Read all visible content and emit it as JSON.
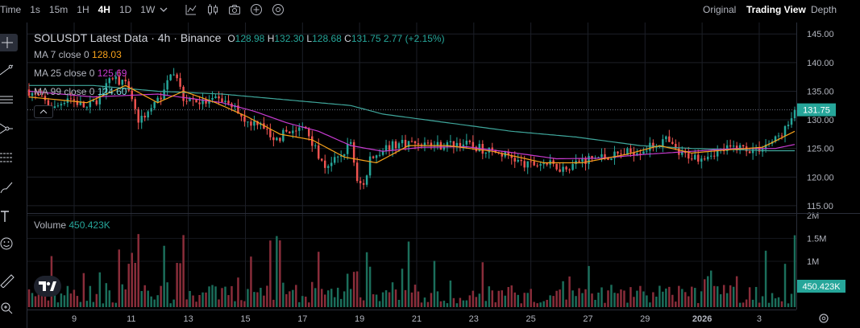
{
  "toolbar": {
    "timeframes": [
      "Time",
      "1s",
      "15m",
      "1H",
      "4H",
      "1D",
      "1W"
    ],
    "active_timeframe": "4H",
    "icons": [
      "chevron-down-icon",
      "indicator-chart-icon",
      "candles-icon",
      "camera-icon",
      "add-circle-icon",
      "settings-circle-icon"
    ],
    "views": [
      "Original",
      "Trading View",
      "Depth"
    ],
    "active_view": "Trading View"
  },
  "sidebar": {
    "tools": [
      "crosshair-icon",
      "trend-line-icon",
      "horizontal-lines-icon",
      "pitchfork-icon",
      "fib-retracement-icon",
      "brush-icon",
      "text-icon",
      "emoji-icon",
      "ruler-icon",
      "zoom-icon"
    ]
  },
  "legend": {
    "symbol": "SOLUSDT Latest Data · 4h · Binance",
    "o_label": "O",
    "o": "128.98",
    "h_label": "H",
    "h": "132.30",
    "l_label": "L",
    "l": "128.68",
    "c_label": "C",
    "c": "131.75",
    "change": "2.77 (+2.15%)",
    "ma7_label": "MA 7 close 0",
    "ma7_value": "128.03",
    "ma7_color": "#f7a21b",
    "ma25_label": "MA 25 close 0",
    "ma25_value": "125.69",
    "ma25_color": "#c83bd1",
    "ma99_label": "MA 99 close 0",
    "ma99_value": "124.60",
    "ma99_color": "#4cc1c9",
    "volume_label": "Volume",
    "volume_value": "450.423K"
  },
  "colors": {
    "up": "#26a69a",
    "down": "#ef5350",
    "up_vol": "#1b6e5b",
    "down_vol": "#8a2d3a",
    "ma7": "#f7a21b",
    "ma25": "#c83bd1",
    "ma99": "#3fa79c"
  },
  "chart_data": {
    "type": "candlestick",
    "price_axis": {
      "ticks": [
        "145.00",
        "140.00",
        "135.00",
        "130.00",
        "125.00",
        "120.00",
        "115.00"
      ],
      "range": [
        114,
        147
      ]
    },
    "volume_axis": {
      "ticks": [
        "2M",
        "1.5M",
        "1M"
      ],
      "max": 2000000
    },
    "x_tick_labels": [
      "9",
      "11",
      "13",
      "15",
      "17",
      "19",
      "21",
      "23",
      "25",
      "27",
      "29",
      "2026",
      "3"
    ],
    "last_price_label": "131.75",
    "last_volume_label": "450.423K",
    "close_path": [
      [
        0,
        135
      ],
      [
        8,
        132
      ],
      [
        12,
        134
      ],
      [
        18,
        132
      ],
      [
        22,
        134
      ],
      [
        26,
        137.5
      ],
      [
        30,
        136
      ],
      [
        34,
        130
      ],
      [
        38,
        132
      ],
      [
        42,
        135
      ],
      [
        44,
        138.5
      ],
      [
        46,
        137
      ],
      [
        48,
        134
      ],
      [
        54,
        133
      ],
      [
        60,
        133.5
      ],
      [
        64,
        132
      ],
      [
        68,
        129.5
      ],
      [
        72,
        129.8
      ],
      [
        76,
        126
      ],
      [
        80,
        128
      ],
      [
        86,
        128.5
      ],
      [
        90,
        124
      ],
      [
        92,
        122
      ],
      [
        96,
        123
      ],
      [
        100,
        126
      ],
      [
        102,
        119
      ],
      [
        104,
        118.5
      ],
      [
        106,
        123
      ],
      [
        110,
        125
      ],
      [
        116,
        126
      ],
      [
        122,
        126
      ],
      [
        128,
        125.5
      ],
      [
        134,
        126
      ],
      [
        140,
        125
      ],
      [
        144,
        124.5
      ],
      [
        150,
        123.5
      ],
      [
        154,
        122
      ],
      [
        160,
        122.5
      ],
      [
        166,
        121.5
      ],
      [
        172,
        123
      ],
      [
        178,
        123.5
      ],
      [
        184,
        124
      ],
      [
        192,
        125
      ],
      [
        198,
        126.5
      ],
      [
        202,
        124
      ],
      [
        208,
        123.5
      ],
      [
        214,
        124.5
      ],
      [
        220,
        125.3
      ],
      [
        226,
        124.7
      ],
      [
        232,
        126.5
      ],
      [
        236,
        129
      ],
      [
        238,
        131.75
      ]
    ],
    "ma7_path": [
      [
        0,
        134
      ],
      [
        18,
        133
      ],
      [
        30,
        136
      ],
      [
        40,
        133
      ],
      [
        48,
        135
      ],
      [
        58,
        133
      ],
      [
        68,
        130.5
      ],
      [
        78,
        127.5
      ],
      [
        88,
        126.5
      ],
      [
        98,
        123.5
      ],
      [
        108,
        122.5
      ],
      [
        118,
        125.5
      ],
      [
        130,
        125.5
      ],
      [
        144,
        124.5
      ],
      [
        160,
        122.5
      ],
      [
        172,
        122.5
      ],
      [
        186,
        124
      ],
      [
        196,
        125.5
      ],
      [
        206,
        124.2
      ],
      [
        218,
        124.8
      ],
      [
        228,
        125.2
      ],
      [
        238,
        128
      ]
    ],
    "ma25_path": [
      [
        0,
        135
      ],
      [
        20,
        134
      ],
      [
        40,
        134.5
      ],
      [
        60,
        133
      ],
      [
        70,
        131.5
      ],
      [
        80,
        129.5
      ],
      [
        90,
        128
      ],
      [
        100,
        125.5
      ],
      [
        110,
        124.5
      ],
      [
        122,
        125.2
      ],
      [
        136,
        125.3
      ],
      [
        150,
        124.3
      ],
      [
        164,
        123.2
      ],
      [
        178,
        123.3
      ],
      [
        192,
        124
      ],
      [
        206,
        124.5
      ],
      [
        220,
        125
      ],
      [
        232,
        125
      ],
      [
        238,
        125.7
      ]
    ],
    "ma99_path": [
      [
        0,
        136
      ],
      [
        20,
        136
      ],
      [
        40,
        135
      ],
      [
        60,
        134.5
      ],
      [
        80,
        133.5
      ],
      [
        100,
        132.5
      ],
      [
        110,
        131
      ],
      [
        130,
        129.5
      ],
      [
        150,
        128
      ],
      [
        170,
        127
      ],
      [
        190,
        125.5
      ],
      [
        206,
        125
      ],
      [
        220,
        124.8
      ],
      [
        230,
        124.6
      ],
      [
        238,
        124.6
      ]
    ]
  }
}
